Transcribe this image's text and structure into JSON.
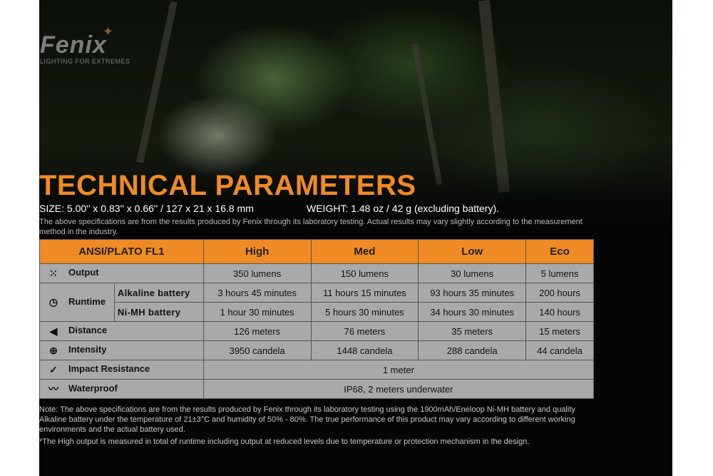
{
  "brand": {
    "name": "Fenix",
    "tagline": "LIGHTING FOR EXTREMES"
  },
  "title": "TECHNICAL PARAMETERS",
  "size": "SIZE: 5.00'' x 0.83'' x 0.66'' / 127 x 21 x 16.8 mm",
  "weight": "WEIGHT: 1.48 oz / 42 g (excluding battery).",
  "disclaimer": "The above specifications are from the results produced by Fenix through its laboratory testing. Actual results may vary slightly according to the measurement method in the industry.",
  "table": {
    "header": [
      "ANSI/PLATO FL1",
      "High",
      "Med",
      "Low",
      "Eco"
    ],
    "output": {
      "label": "Output",
      "icon": "light-burst-icon",
      "values": [
        "350 lumens",
        "150 lumens",
        "30 lumens",
        "5 lumens"
      ]
    },
    "runtime": {
      "label": "Runtime",
      "icon": "clock-icon",
      "alkaline": {
        "label": "Alkaline battery",
        "values": [
          "3 hours 45 minutes",
          "11 hours 15 minutes",
          "93 hours 35 minutes",
          "200 hours"
        ]
      },
      "nimh": {
        "label": "Ni-MH battery",
        "values": [
          "1 hour 30 minutes",
          "5 hours 30 minutes",
          "34 hours 30 minutes",
          "140 hours"
        ]
      }
    },
    "distance": {
      "label": "Distance",
      "icon": "beam-distance-icon",
      "values": [
        "126 meters",
        "76 meters",
        "35 meters",
        "15 meters"
      ]
    },
    "intensity": {
      "label": "Intensity",
      "icon": "target-icon",
      "values": [
        "3950 candela",
        "1448 candela",
        "288 candela",
        "44 candela"
      ]
    },
    "impact": {
      "label": "Impact Resistance",
      "icon": "impact-icon",
      "value": "1 meter"
    },
    "waterproof": {
      "label": "Waterproof",
      "icon": "water-icon",
      "value": "IP68, 2 meters underwater"
    }
  },
  "note": "Note: The above specifications are from the results produced by Fenix through its laboratory testing using the 1900mAh/Eneloop Ni-MH battery and quality Alkaline battery under the temperature of 21±3°C and humidity of 50% - 80%. The true performance of this product may vary according to different working environments and the actual battery used.",
  "footnote": "*The High output is measured in total of runtime including output at reduced levels due to temperature or protection mechanism in the design.",
  "colors": {
    "accent": "#f08a24",
    "cell": "#a9a9a9",
    "background": "#050505"
  }
}
